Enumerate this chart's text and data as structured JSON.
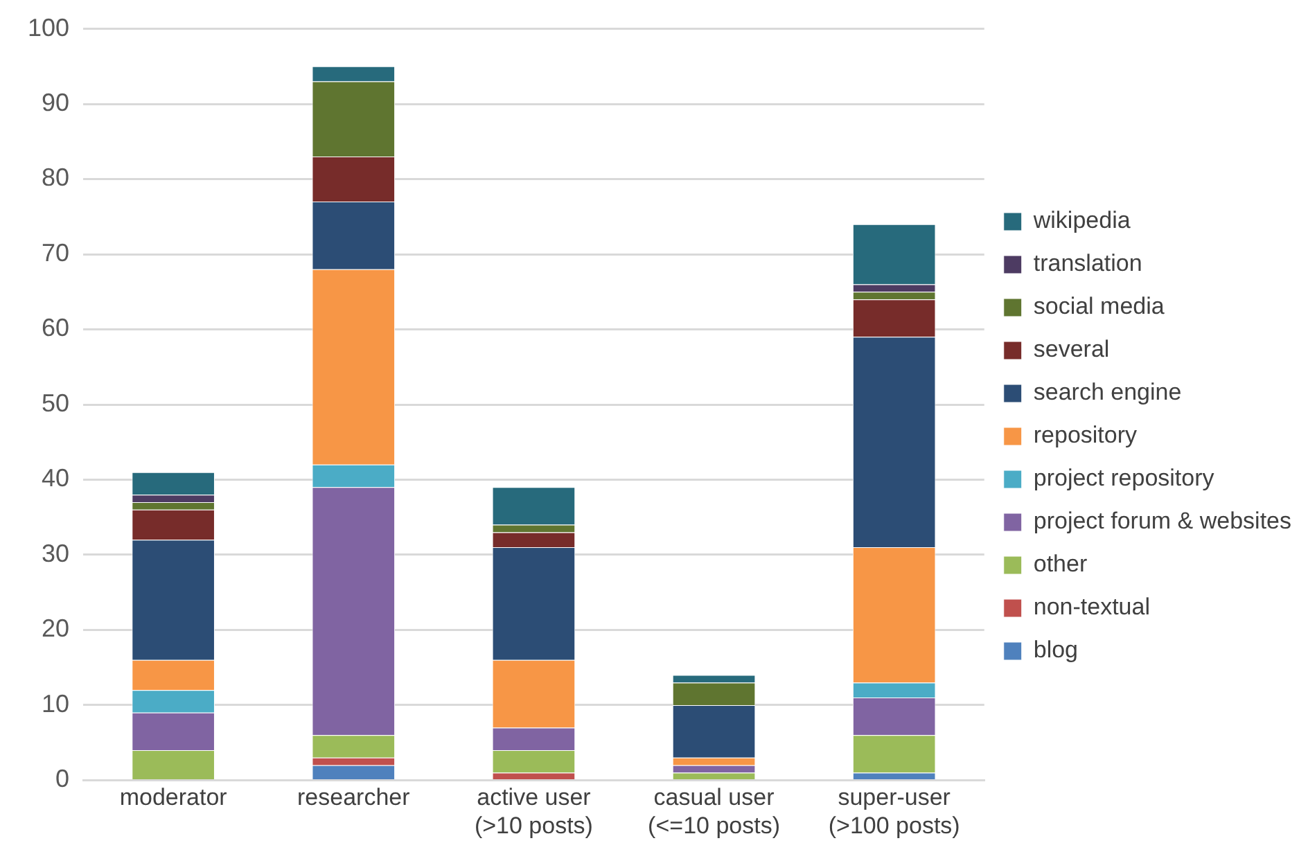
{
  "chart_data": {
    "type": "bar",
    "stacked": true,
    "categories": [
      "moderator",
      "researcher",
      "active user\n(>10 posts)",
      "casual user\n(<=10 posts)",
      "super-user\n(>100 posts)"
    ],
    "series": [
      {
        "name": "blog",
        "color": "#4f81bd",
        "values": [
          0,
          2,
          0,
          0,
          1
        ]
      },
      {
        "name": "non-textual",
        "color": "#c0504d",
        "values": [
          0,
          1,
          1,
          0,
          0
        ]
      },
      {
        "name": "other",
        "color": "#9bbb59",
        "values": [
          4,
          3,
          3,
          1,
          5
        ]
      },
      {
        "name": "project forum & websites",
        "color": "#8064a2",
        "values": [
          5,
          33,
          3,
          1,
          5
        ]
      },
      {
        "name": "project repository",
        "color": "#4bacc6",
        "values": [
          3,
          3,
          0,
          0,
          2
        ]
      },
      {
        "name": "repository",
        "color": "#f79646",
        "values": [
          4,
          26,
          9,
          1,
          18
        ]
      },
      {
        "name": "search engine",
        "color": "#2c4d75",
        "values": [
          16,
          9,
          15,
          7,
          28
        ]
      },
      {
        "name": "several",
        "color": "#772c2a",
        "values": [
          4,
          6,
          2,
          0,
          5
        ]
      },
      {
        "name": "social media",
        "color": "#5f7530",
        "values": [
          1,
          10,
          1,
          3,
          1
        ]
      },
      {
        "name": "translation",
        "color": "#4d3b62",
        "values": [
          1,
          0,
          0,
          0,
          1
        ]
      },
      {
        "name": "wikipedia",
        "color": "#276a7c",
        "values": [
          3,
          2,
          5,
          1,
          8
        ]
      }
    ],
    "ylim": [
      0,
      100
    ],
    "yticks": [
      0,
      10,
      20,
      30,
      40,
      50,
      60,
      70,
      80,
      90,
      100
    ],
    "grid": "y",
    "legend": "right"
  }
}
